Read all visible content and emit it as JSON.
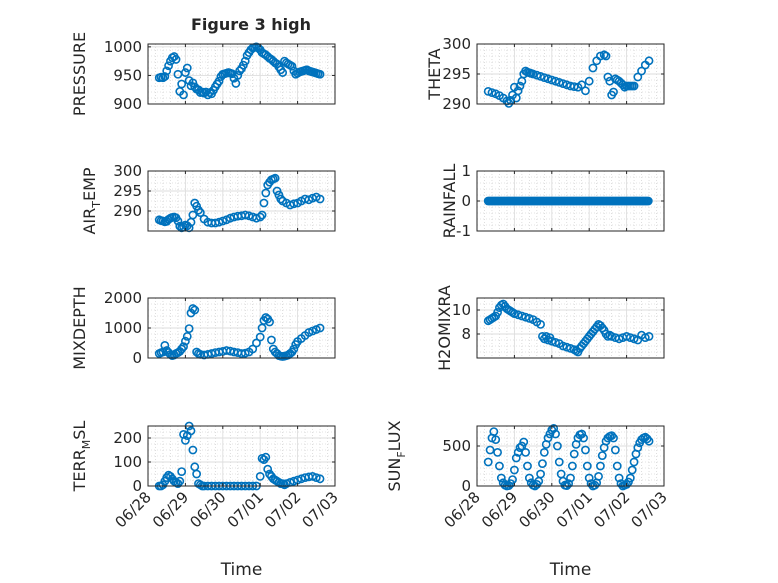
{
  "figure": {
    "title": "Figure 3 high",
    "accent": "#0072BD"
  },
  "chart_data": [
    {
      "id": "pressure",
      "type": "scatter",
      "title": "Figure 3 high",
      "ylabel": "PRESSURE",
      "ylabel_sub": "",
      "ylabel_after": "",
      "xlabel": "",
      "xlim": [
        0,
        5
      ],
      "ylim": [
        900,
        1005
      ],
      "yticks": [
        900,
        950,
        1000
      ],
      "grid": true,
      "color": "#0072BD",
      "x": [
        0.3,
        0.35,
        0.4,
        0.45,
        0.5,
        0.55,
        0.6,
        0.65,
        0.7,
        0.75,
        0.8,
        0.85,
        0.9,
        0.95,
        1.0,
        1.05,
        1.1,
        1.15,
        1.2,
        1.25,
        1.3,
        1.35,
        1.4,
        1.45,
        1.5,
        1.55,
        1.6,
        1.65,
        1.7,
        1.75,
        1.8,
        1.85,
        1.9,
        1.95,
        2.0,
        2.05,
        2.1,
        2.15,
        2.2,
        2.25,
        2.3,
        2.35,
        2.4,
        2.45,
        2.5,
        2.55,
        2.6,
        2.65,
        2.7,
        2.75,
        2.8,
        2.85,
        2.9,
        2.95,
        3.0,
        3.05,
        3.1,
        3.15,
        3.2,
        3.25,
        3.3,
        3.35,
        3.4,
        3.45,
        3.5,
        3.55,
        3.6,
        3.65,
        3.7,
        3.75,
        3.8,
        3.85,
        3.9,
        3.95,
        4.0,
        4.05,
        4.1,
        4.15,
        4.2,
        4.25,
        4.3,
        4.35,
        4.4,
        4.45,
        4.5,
        4.55,
        4.6
      ],
      "y": [
        946,
        947,
        946,
        948,
        958,
        967,
        975,
        981,
        983,
        978,
        952,
        922,
        935,
        916,
        955,
        963,
        941,
        932,
        937,
        930,
        926,
        925,
        920,
        921,
        919,
        921,
        916,
        920,
        918,
        924,
        930,
        935,
        940,
        948,
        952,
        953,
        954,
        955,
        954,
        953,
        945,
        936,
        950,
        958,
        962,
        968,
        975,
        985,
        990,
        995,
        998,
        999,
        1000,
        998,
        995,
        990,
        988,
        986,
        983,
        980,
        978,
        975,
        972,
        970,
        965,
        960,
        955,
        975,
        972,
        970,
        968,
        966,
        958,
        952,
        954,
        956,
        957,
        958,
        959,
        960,
        958,
        957,
        956,
        955,
        954,
        953,
        952
      ],
      "y_note": "approximate readings"
    },
    {
      "id": "theta",
      "type": "scatter",
      "title": "",
      "ylabel": "THETA",
      "ylabel_sub": "",
      "ylabel_after": "",
      "xlabel": "",
      "xlim": [
        0,
        5
      ],
      "ylim": [
        290,
        300
      ],
      "yticks": [
        290,
        295,
        300
      ],
      "grid": true,
      "color": "#0072BD",
      "x": [
        0.3,
        0.4,
        0.5,
        0.6,
        0.7,
        0.8,
        0.85,
        0.9,
        0.95,
        1.0,
        1.05,
        1.1,
        1.15,
        1.2,
        1.25,
        1.3,
        1.35,
        1.4,
        1.45,
        1.5,
        1.6,
        1.7,
        1.8,
        1.9,
        2.0,
        2.1,
        2.2,
        2.3,
        2.4,
        2.5,
        2.6,
        2.7,
        2.8,
        2.9,
        3.0,
        3.1,
        3.2,
        3.3,
        3.4,
        3.45,
        3.5,
        3.55,
        3.6,
        3.65,
        3.7,
        3.75,
        3.8,
        3.85,
        3.9,
        3.95,
        4.0,
        4.05,
        4.1,
        4.15,
        4.2,
        4.3,
        4.4,
        4.5,
        4.6
      ],
      "y": [
        292.1,
        291.9,
        291.7,
        291.4,
        291.0,
        290.5,
        290.1,
        290.6,
        291.5,
        292.8,
        291.0,
        292.2,
        293.0,
        293.8,
        295.0,
        295.5,
        295.3,
        295.2,
        295.1,
        295.0,
        294.8,
        294.6,
        294.4,
        294.2,
        294.0,
        293.8,
        293.6,
        293.4,
        293.2,
        293.0,
        292.9,
        292.8,
        293.2,
        292.2,
        293.8,
        296.0,
        297.2,
        298.0,
        298.2,
        298.0,
        294.5,
        293.8,
        291.5,
        292.0,
        294.2,
        294.0,
        293.8,
        293.5,
        293.2,
        292.8,
        293.0,
        293.0,
        293.0,
        293.0,
        293.0,
        294.5,
        295.5,
        296.5,
        297.2
      ]
    },
    {
      "id": "air_temp",
      "type": "scatter",
      "title": "",
      "ylabel": "AIR",
      "ylabel_sub": "T",
      "ylabel_after": "EMP",
      "xlabel": "",
      "xlim": [
        0,
        5
      ],
      "ylim": [
        285,
        300
      ],
      "yticks": [
        290,
        295
      ],
      "extra_tick_top": 300,
      "grid": true,
      "color": "#0072BD",
      "x": [
        0.3,
        0.35,
        0.4,
        0.45,
        0.5,
        0.55,
        0.6,
        0.65,
        0.7,
        0.75,
        0.8,
        0.85,
        0.9,
        0.95,
        1.0,
        1.05,
        1.1,
        1.15,
        1.2,
        1.25,
        1.3,
        1.35,
        1.4,
        1.5,
        1.6,
        1.7,
        1.8,
        1.9,
        2.0,
        2.1,
        2.2,
        2.3,
        2.4,
        2.5,
        2.6,
        2.7,
        2.8,
        2.9,
        3.0,
        3.05,
        3.1,
        3.15,
        3.2,
        3.25,
        3.3,
        3.35,
        3.4,
        3.45,
        3.5,
        3.55,
        3.6,
        3.7,
        3.8,
        3.9,
        4.0,
        4.1,
        4.2,
        4.3,
        4.4,
        4.5,
        4.6
      ],
      "y": [
        287.8,
        287.6,
        287.5,
        287.3,
        287.4,
        287.9,
        288.2,
        288.4,
        288.5,
        288.3,
        287.5,
        286.2,
        285.8,
        286.0,
        286.5,
        286.3,
        285.8,
        287.2,
        289.0,
        292.0,
        291.2,
        290.2,
        289.6,
        288.0,
        287.2,
        287.0,
        287.0,
        287.2,
        287.5,
        287.8,
        288.2,
        288.5,
        288.7,
        288.8,
        289.0,
        288.8,
        288.5,
        288.2,
        288.5,
        289.0,
        292.0,
        294.5,
        296.5,
        297.2,
        297.8,
        298.0,
        298.2,
        295.0,
        294.0,
        293.0,
        292.5,
        292.0,
        291.5,
        291.8,
        292.0,
        292.5,
        293.0,
        292.8,
        293.2,
        293.5,
        293.0
      ]
    },
    {
      "id": "rainfall",
      "type": "scatter",
      "title": "",
      "ylabel": "RAINFALL",
      "ylabel_sub": "",
      "ylabel_after": "",
      "xlabel": "",
      "xlim": [
        0,
        5
      ],
      "ylim": [
        -1,
        1
      ],
      "yticks": [
        -1,
        0,
        1
      ],
      "grid": true,
      "color": "#0072BD",
      "x_range": [
        0.3,
        4.6
      ],
      "constant_value": 0
    },
    {
      "id": "mixdepth",
      "type": "scatter",
      "title": "",
      "ylabel": "MIXDEPTH",
      "ylabel_sub": "",
      "ylabel_after": "",
      "xlabel": "",
      "xlim": [
        0,
        5
      ],
      "ylim": [
        0,
        2000
      ],
      "yticks": [
        0,
        1000,
        2000
      ],
      "grid": true,
      "color": "#0072BD",
      "x": [
        0.3,
        0.35,
        0.4,
        0.45,
        0.5,
        0.55,
        0.6,
        0.65,
        0.7,
        0.75,
        0.8,
        0.85,
        0.9,
        0.95,
        1.0,
        1.05,
        1.1,
        1.15,
        1.2,
        1.25,
        1.3,
        1.35,
        1.4,
        1.5,
        1.6,
        1.7,
        1.8,
        1.9,
        2.0,
        2.1,
        2.2,
        2.3,
        2.4,
        2.5,
        2.6,
        2.7,
        2.8,
        2.9,
        3.0,
        3.05,
        3.1,
        3.15,
        3.2,
        3.25,
        3.3,
        3.35,
        3.4,
        3.45,
        3.5,
        3.55,
        3.6,
        3.65,
        3.7,
        3.75,
        3.8,
        3.85,
        3.9,
        3.95,
        4.0,
        4.1,
        4.2,
        4.3,
        4.4,
        4.5,
        4.6
      ],
      "y": [
        150,
        180,
        200,
        420,
        250,
        180,
        120,
        80,
        100,
        150,
        180,
        220,
        300,
        380,
        560,
        720,
        980,
        1500,
        1650,
        1600,
        200,
        150,
        120,
        100,
        120,
        150,
        180,
        200,
        220,
        250,
        230,
        200,
        180,
        150,
        160,
        200,
        300,
        500,
        700,
        1000,
        1250,
        1350,
        1300,
        1200,
        600,
        300,
        200,
        150,
        80,
        60,
        50,
        60,
        80,
        100,
        150,
        200,
        300,
        450,
        550,
        650,
        750,
        850,
        900,
        950,
        1000
      ]
    },
    {
      "id": "h2omixra",
      "type": "scatter",
      "title": "",
      "ylabel": "H2OMIXRA",
      "ylabel_sub": "",
      "ylabel_after": "",
      "xlabel": "",
      "xlim": [
        0,
        5
      ],
      "ylim": [
        6,
        11
      ],
      "yticks": [
        8,
        10
      ],
      "grid": true,
      "color": "#0072BD",
      "x": [
        0.3,
        0.35,
        0.4,
        0.45,
        0.5,
        0.55,
        0.6,
        0.65,
        0.7,
        0.75,
        0.8,
        0.85,
        0.9,
        0.95,
        1.0,
        1.1,
        1.2,
        1.3,
        1.4,
        1.5,
        1.6,
        1.7,
        1.75,
        1.8,
        1.85,
        1.9,
        1.95,
        2.0,
        2.1,
        2.2,
        2.3,
        2.4,
        2.5,
        2.6,
        2.65,
        2.7,
        2.75,
        2.8,
        2.85,
        2.9,
        2.95,
        3.0,
        3.05,
        3.1,
        3.15,
        3.2,
        3.25,
        3.3,
        3.35,
        3.4,
        3.45,
        3.5,
        3.55,
        3.6,
        3.7,
        3.8,
        3.9,
        4.0,
        4.1,
        4.2,
        4.3,
        4.4,
        4.5,
        4.6
      ],
      "y": [
        9.1,
        9.2,
        9.3,
        9.4,
        9.5,
        9.8,
        10.2,
        10.4,
        10.5,
        10.3,
        10.1,
        10.0,
        9.9,
        9.8,
        9.7,
        9.6,
        9.5,
        9.4,
        9.3,
        9.2,
        9.0,
        8.8,
        7.8,
        7.6,
        7.8,
        7.5,
        7.7,
        7.4,
        7.3,
        7.2,
        7.0,
        6.9,
        6.8,
        6.7,
        6.6,
        6.5,
        6.8,
        7.0,
        7.2,
        7.4,
        7.6,
        7.8,
        8.0,
        8.2,
        8.4,
        8.6,
        8.8,
        8.7,
        8.5,
        8.3,
        8.0,
        7.8,
        7.9,
        7.8,
        7.7,
        7.6,
        7.7,
        7.8,
        7.7,
        7.6,
        7.5,
        7.9,
        7.7,
        7.8
      ]
    },
    {
      "id": "terr_msl",
      "type": "scatter",
      "title": "",
      "ylabel": "TERR",
      "ylabel_sub": "M",
      "ylabel_after": "SL",
      "xlabel": "Time",
      "xlim": [
        0,
        5
      ],
      "ylim": [
        0,
        250
      ],
      "yticks": [
        0,
        100,
        200
      ],
      "grid": true,
      "color": "#0072BD",
      "xticklabels": [
        "06/28",
        "06/29",
        "06/30",
        "07/01",
        "07/02",
        "07/03"
      ],
      "x": [
        0.3,
        0.35,
        0.4,
        0.45,
        0.5,
        0.55,
        0.6,
        0.65,
        0.7,
        0.75,
        0.8,
        0.85,
        0.9,
        0.95,
        1.0,
        1.05,
        1.1,
        1.15,
        1.2,
        1.25,
        1.3,
        1.35,
        1.4,
        1.45,
        1.5,
        1.6,
        1.7,
        1.8,
        1.9,
        2.0,
        2.1,
        2.2,
        2.3,
        2.4,
        2.5,
        2.6,
        2.7,
        2.8,
        2.9,
        3.0,
        3.05,
        3.1,
        3.15,
        3.2,
        3.25,
        3.3,
        3.35,
        3.4,
        3.45,
        3.5,
        3.55,
        3.6,
        3.65,
        3.7,
        3.8,
        3.9,
        4.0,
        4.1,
        4.2,
        4.3,
        4.4,
        4.5,
        4.6
      ],
      "y": [
        0,
        0,
        5,
        20,
        35,
        45,
        40,
        30,
        20,
        15,
        10,
        20,
        60,
        215,
        190,
        210,
        250,
        230,
        150,
        80,
        50,
        10,
        5,
        0,
        0,
        0,
        0,
        0,
        0,
        0,
        0,
        0,
        0,
        0,
        0,
        0,
        0,
        0,
        0,
        40,
        115,
        110,
        120,
        70,
        50,
        40,
        30,
        25,
        20,
        15,
        10,
        10,
        5,
        10,
        15,
        20,
        25,
        30,
        35,
        38,
        40,
        35,
        30
      ]
    },
    {
      "id": "sun_flux",
      "type": "scatter",
      "title": "",
      "ylabel": "SUN",
      "ylabel_sub": "F",
      "ylabel_after": "LUX",
      "xlabel": "Time",
      "xlim": [
        0,
        5
      ],
      "ylim": [
        0,
        750
      ],
      "yticks": [
        0,
        500
      ],
      "grid": true,
      "color": "#0072BD",
      "xticklabels": [
        "06/28",
        "06/29",
        "06/30",
        "07/01",
        "07/02",
        "07/03"
      ],
      "x": [
        0.3,
        0.35,
        0.4,
        0.45,
        0.5,
        0.55,
        0.6,
        0.65,
        0.7,
        0.75,
        0.8,
        0.85,
        0.9,
        0.95,
        1.0,
        1.05,
        1.1,
        1.15,
        1.2,
        1.25,
        1.3,
        1.35,
        1.4,
        1.45,
        1.5,
        1.55,
        1.6,
        1.65,
        1.7,
        1.75,
        1.8,
        1.85,
        1.9,
        1.95,
        2.0,
        2.05,
        2.1,
        2.15,
        2.2,
        2.25,
        2.3,
        2.35,
        2.4,
        2.45,
        2.5,
        2.55,
        2.6,
        2.65,
        2.7,
        2.75,
        2.8,
        2.85,
        2.9,
        2.95,
        3.0,
        3.05,
        3.1,
        3.15,
        3.2,
        3.25,
        3.3,
        3.35,
        3.4,
        3.45,
        3.5,
        3.55,
        3.6,
        3.65,
        3.7,
        3.75,
        3.8,
        3.85,
        3.9,
        3.95,
        4.0,
        4.05,
        4.1,
        4.15,
        4.2,
        4.25,
        4.3,
        4.35,
        4.4,
        4.45,
        4.5,
        4.55,
        4.6
      ],
      "y": [
        300,
        450,
        600,
        680,
        580,
        420,
        250,
        100,
        40,
        10,
        0,
        5,
        30,
        80,
        200,
        350,
        420,
        480,
        500,
        550,
        420,
        250,
        100,
        40,
        10,
        0,
        20,
        60,
        150,
        280,
        420,
        520,
        600,
        650,
        700,
        720,
        650,
        500,
        300,
        150,
        60,
        10,
        5,
        30,
        100,
        250,
        400,
        520,
        600,
        640,
        650,
        600,
        450,
        250,
        100,
        30,
        0,
        10,
        40,
        120,
        250,
        380,
        480,
        560,
        600,
        620,
        630,
        600,
        450,
        250,
        100,
        30,
        0,
        10,
        20,
        50,
        100,
        200,
        300,
        400,
        480,
        540,
        580,
        600,
        610,
        590,
        560
      ]
    }
  ]
}
